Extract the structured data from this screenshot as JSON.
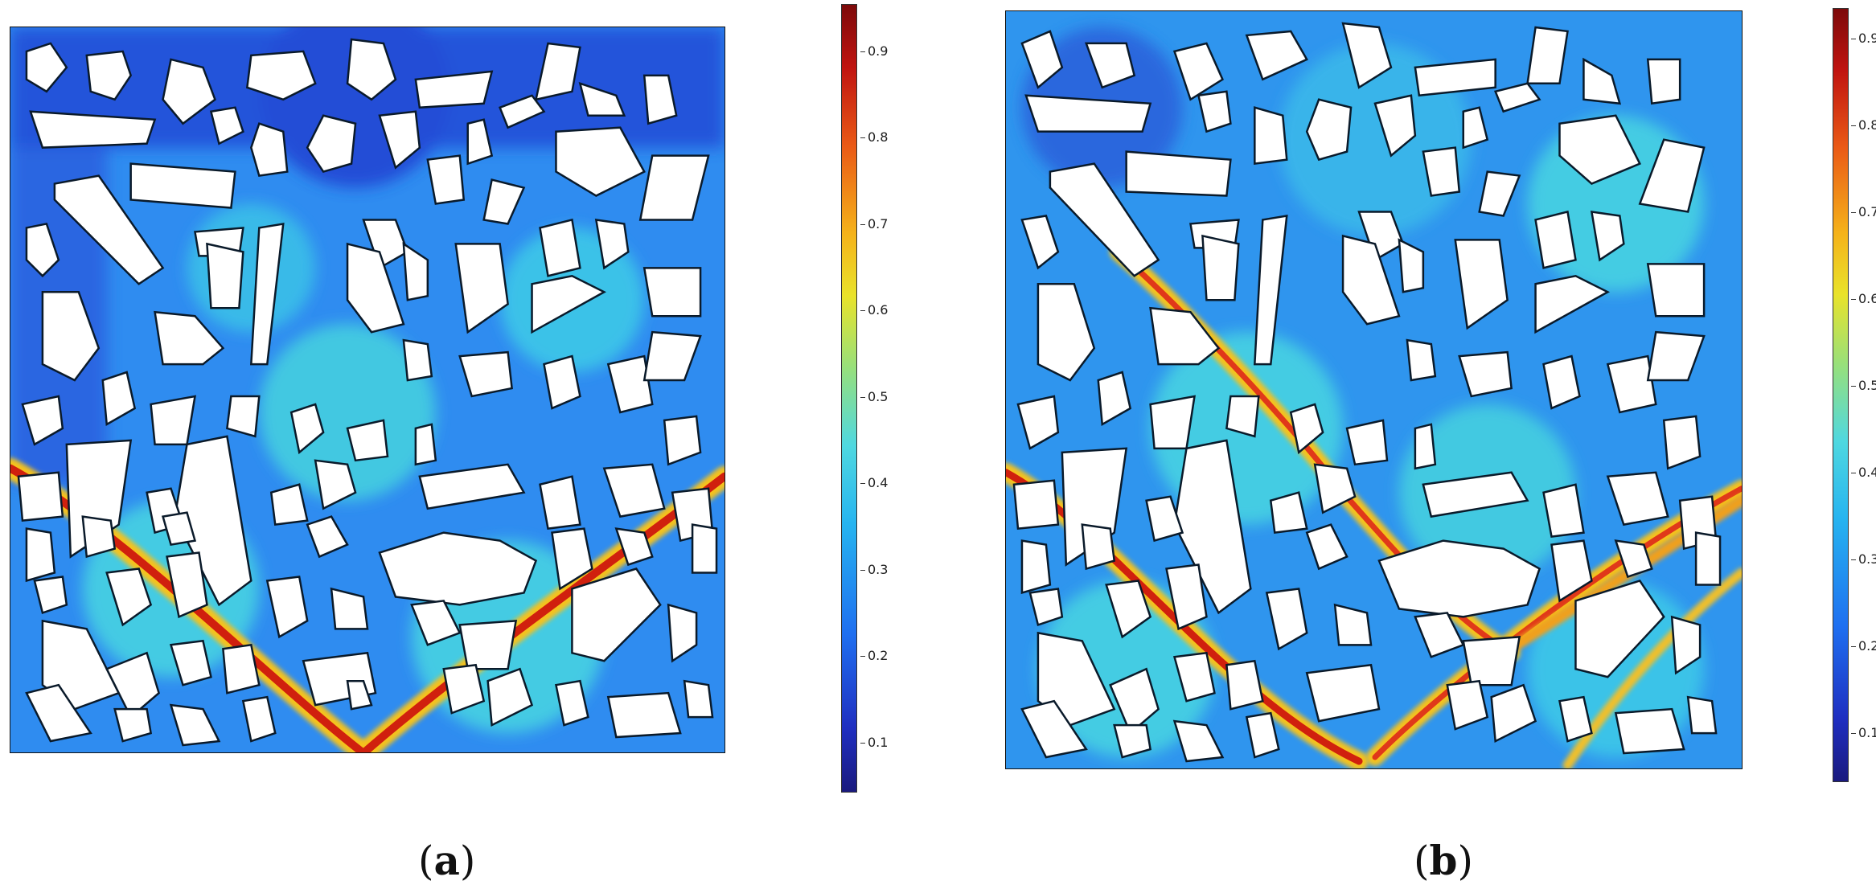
{
  "figure": {
    "panel_a": {
      "caption_open": "(",
      "caption_letter": "a",
      "caption_close": ")",
      "colorbar_ticks": [
        "0.9",
        "0.8",
        "0.7",
        "0.6",
        "0.5",
        "0.4",
        "0.3",
        "0.2",
        "0.1"
      ],
      "colorbar_range": [
        0.03,
        0.96
      ]
    },
    "panel_b": {
      "caption_open": "(",
      "caption_letter": "b",
      "caption_close": ")",
      "colorbar_ticks": [
        "0.9",
        "0.8",
        "0.7",
        "0.6",
        "0.5",
        "0.4",
        "0.3",
        "0.2",
        "0.1"
      ],
      "colorbar_range": [
        0.02,
        0.96
      ]
    },
    "colormap": [
      "#1a1a7e",
      "#1f6ff0",
      "#26b4f0",
      "#98e07a",
      "#e9e32a",
      "#ea5a16",
      "#7d0a0a"
    ],
    "background_field_color": "#2f8cf0",
    "crack_color": "#c81a0e",
    "aggregate_fill": "#ffffff"
  }
}
